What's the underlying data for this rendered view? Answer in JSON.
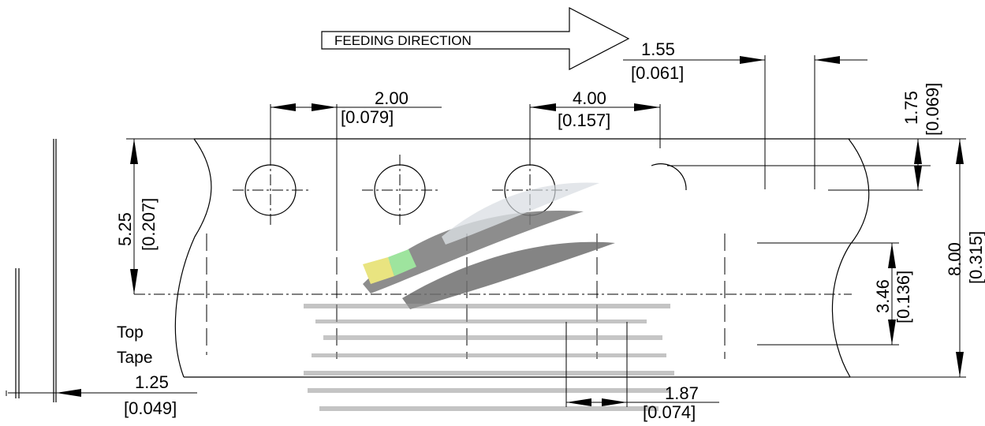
{
  "feeding_direction": "FEEDING DIRECTION",
  "top_tape_label_line1": "Top",
  "top_tape_label_line2": "Tape",
  "dimensions": {
    "sprocket_hole_pitch": {
      "mm": "2.00",
      "inch": "[0.079]"
    },
    "hole_pitch": {
      "mm": "4.00",
      "inch": "[0.157]"
    },
    "hole_to_pocket": {
      "mm": "1.55",
      "inch": "[0.061]"
    },
    "hole_edge_distance": {
      "mm": "1.75",
      "inch": "[0.069]"
    },
    "pocket_span": {
      "mm": "5.25",
      "inch": "[0.207]"
    },
    "tape_width": {
      "mm": "8.00",
      "inch": "[0.315]"
    },
    "pocket_width": {
      "mm": "3.46",
      "inch": "[0.136]"
    },
    "pocket_length": {
      "mm": "1.87",
      "inch": "[0.074]"
    },
    "top_tape_thickness": {
      "mm": "1.25",
      "inch": "[0.049]"
    }
  }
}
